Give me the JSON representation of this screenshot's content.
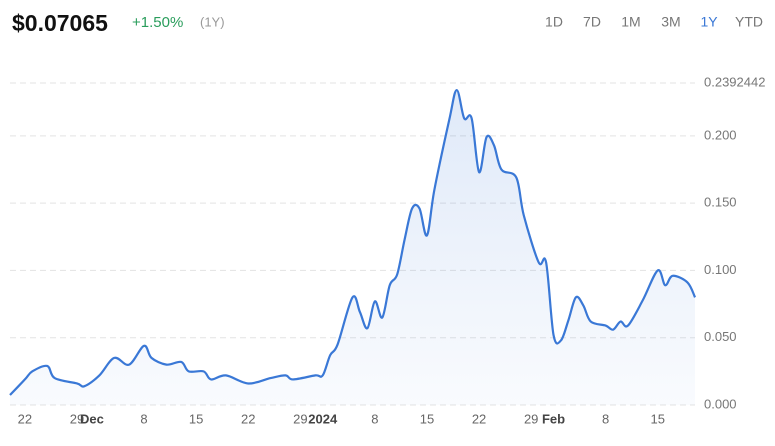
{
  "header": {
    "price": "$0.07065",
    "change": "+1.50%",
    "period": "(1Y)",
    "ranges": [
      "1D",
      "7D",
      "1M",
      "3M",
      "1Y",
      "YTD"
    ],
    "active_range": "1Y"
  },
  "chart_data": {
    "type": "line",
    "color": "#3a78d6",
    "grid": true,
    "x": [
      "2023-11-20",
      "2023-11-22",
      "2023-11-23",
      "2023-11-25",
      "2023-11-26",
      "2023-11-29",
      "2023-11-30",
      "2023-12-02",
      "2023-12-04",
      "2023-12-06",
      "2023-12-08",
      "2023-12-09",
      "2023-12-11",
      "2023-12-13",
      "2023-12-14",
      "2023-12-16",
      "2023-12-17",
      "2023-12-19",
      "2023-12-22",
      "2023-12-25",
      "2023-12-27",
      "2023-12-28",
      "2023-12-31",
      "2024-01-01",
      "2024-01-02",
      "2024-01-03",
      "2024-01-05",
      "2024-01-06",
      "2024-01-07",
      "2024-01-08",
      "2024-01-09",
      "2024-01-10",
      "2024-01-11",
      "2024-01-12",
      "2024-01-13",
      "2024-01-14",
      "2024-01-15",
      "2024-01-16",
      "2024-01-18",
      "2024-01-19",
      "2024-01-20",
      "2024-01-21",
      "2024-01-22",
      "2024-01-23",
      "2024-01-24",
      "2024-01-25",
      "2024-01-27",
      "2024-01-28",
      "2024-01-30",
      "2024-01-31",
      "2024-02-01",
      "2024-02-02",
      "2024-02-03",
      "2024-02-04",
      "2024-02-05",
      "2024-02-06",
      "2024-02-08",
      "2024-02-09",
      "2024-02-10",
      "2024-02-11",
      "2024-02-13",
      "2024-02-15",
      "2024-02-16",
      "2024-02-17",
      "2024-02-19",
      "2024-02-20"
    ],
    "values": [
      0.0074,
      0.019,
      0.025,
      0.029,
      0.02,
      0.016,
      0.014,
      0.022,
      0.035,
      0.03,
      0.044,
      0.035,
      0.03,
      0.032,
      0.025,
      0.025,
      0.019,
      0.022,
      0.016,
      0.02,
      0.022,
      0.019,
      0.022,
      0.022,
      0.037,
      0.045,
      0.08,
      0.069,
      0.057,
      0.077,
      0.065,
      0.089,
      0.097,
      0.123,
      0.146,
      0.146,
      0.126,
      0.16,
      0.212,
      0.234,
      0.213,
      0.213,
      0.173,
      0.199,
      0.193,
      0.175,
      0.169,
      0.141,
      0.106,
      0.106,
      0.052,
      0.048,
      0.063,
      0.08,
      0.074,
      0.062,
      0.059,
      0.056,
      0.062,
      0.059,
      0.078,
      0.1,
      0.089,
      0.096,
      0.091,
      0.08
    ],
    "xlim": [
      "2023-11-20",
      "2024-02-20"
    ],
    "xticks": [
      {
        "value": "2023-11-22",
        "label": "22"
      },
      {
        "value": "2023-11-29",
        "label": "29"
      },
      {
        "value": "2023-12-01",
        "label": "Dec"
      },
      {
        "value": "2023-12-08",
        "label": "8"
      },
      {
        "value": "2023-12-15",
        "label": "15"
      },
      {
        "value": "2023-12-22",
        "label": "22"
      },
      {
        "value": "2023-12-29",
        "label": "29"
      },
      {
        "value": "2024-01-01",
        "label": "2024"
      },
      {
        "value": "2024-01-08",
        "label": "8"
      },
      {
        "value": "2024-01-15",
        "label": "15"
      },
      {
        "value": "2024-01-22",
        "label": "22"
      },
      {
        "value": "2024-01-29",
        "label": "29"
      },
      {
        "value": "2024-02-01",
        "label": "Feb"
      },
      {
        "value": "2024-02-08",
        "label": "8"
      },
      {
        "value": "2024-02-15",
        "label": "15"
      }
    ],
    "ylim": [
      0,
      0.2392442
    ],
    "yticks": [
      {
        "value": 0,
        "label": "0.000"
      },
      {
        "value": 0.05,
        "label": "0.050"
      },
      {
        "value": 0.1,
        "label": "0.100"
      },
      {
        "value": 0.15,
        "label": "0.150"
      },
      {
        "value": 0.2,
        "label": "0.200"
      },
      0.2392442
    ]
  }
}
